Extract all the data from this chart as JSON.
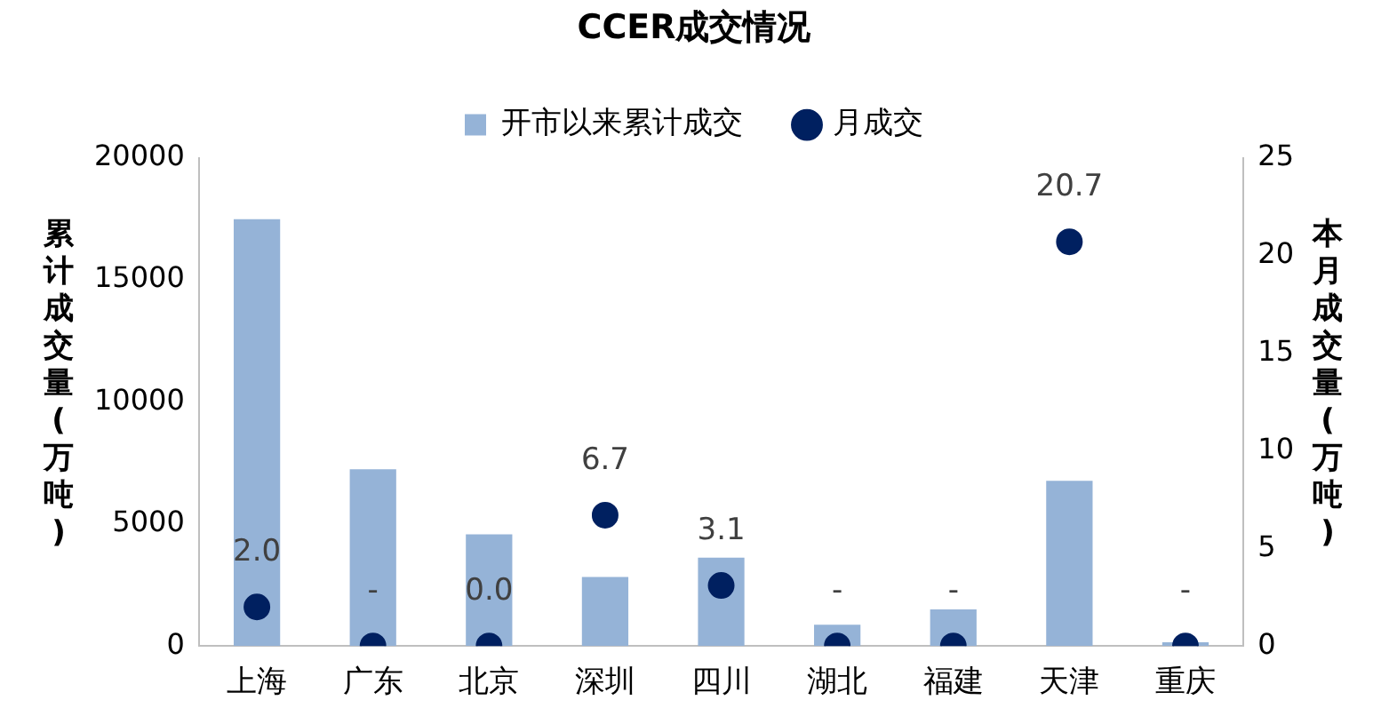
{
  "chart_data": {
    "type": "bar",
    "title": "CCER成交情况",
    "ylabel": "累计成交量(万吨)",
    "y2label": "本月成交量(万吨)",
    "categories": [
      "上海",
      "广东",
      "北京",
      "深圳",
      "四川",
      "湖北",
      "福建",
      "天津",
      "重庆"
    ],
    "series": [
      {
        "name": "开市以来累计成交",
        "color": "#95b3d7",
        "values": [
          17480,
          7240,
          4570,
          2830,
          3620,
          870,
          1500,
          6770,
          150
        ]
      },
      {
        "name": "月成交",
        "type": "scatter",
        "axis": "y2",
        "color": "#002060",
        "values": [
          2.0,
          0,
          0.0,
          6.7,
          3.1,
          0,
          0,
          20.7,
          0
        ],
        "value_labels": [
          "2.0",
          "-",
          "0.0",
          "6.7",
          "3.1",
          "-",
          "-",
          "20.7",
          "-"
        ]
      }
    ],
    "ylim": [
      0,
      20000
    ],
    "yticks": [
      0,
      5000,
      10000,
      15000,
      20000
    ],
    "y2lim": [
      0,
      25
    ],
    "y2ticks": [
      0,
      5,
      10,
      15,
      20,
      25
    ],
    "legend": "top",
    "marker": "circle",
    "grid": false
  }
}
